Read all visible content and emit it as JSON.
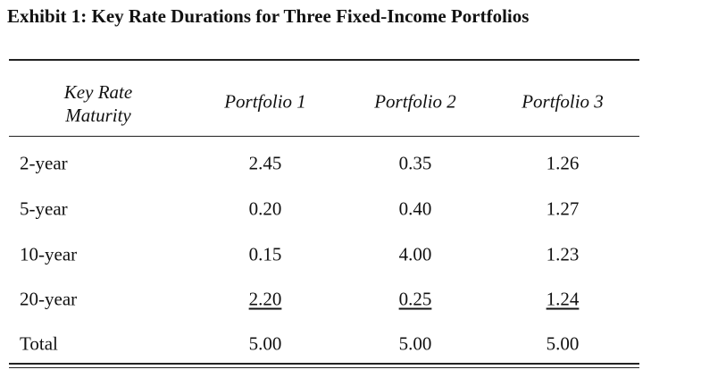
{
  "title": "Exhibit 1: Key Rate Durations for Three Fixed-Income Portfolios",
  "table": {
    "header": [
      "Key Rate Maturity",
      "Portfolio 1",
      "Portfolio 2",
      "Portfolio 3"
    ],
    "rows": [
      [
        "2-year",
        "2.45",
        "0.35",
        "1.26"
      ],
      [
        "5-year",
        "0.20",
        "0.40",
        "1.27"
      ],
      [
        "10-year",
        "0.15",
        "4.00",
        "1.23"
      ],
      [
        "20-year",
        "2.20",
        "0.25",
        "1.24"
      ],
      [
        "Total",
        "5.00",
        "5.00",
        "5.00"
      ]
    ]
  }
}
